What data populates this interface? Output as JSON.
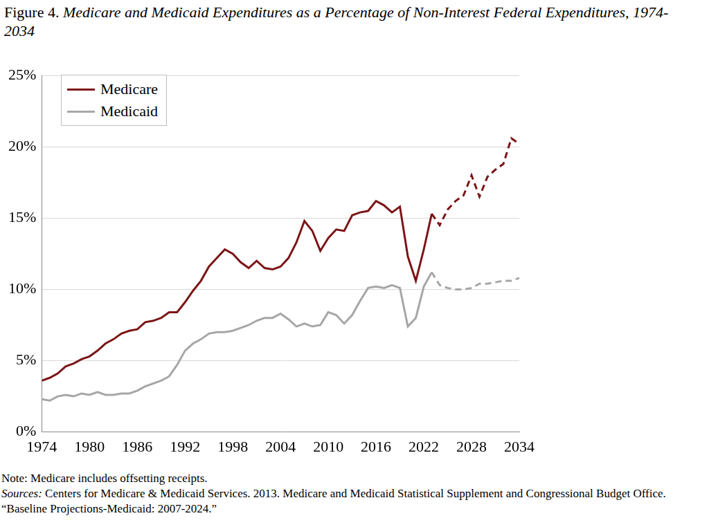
{
  "chart_data": {
    "type": "line",
    "title": "Figure 4. Medicare and Medicaid Expenditures as a Percentage of Non-Interest Federal Expenditures, 1974-2034",
    "note": "Note: Medicare includes offsetting receipts.",
    "sources": "Sources: Centers for Medicare & Medicaid Services. 2013. Medicare and Medicaid Statistical Supplement and Congressional Budget Office. “Baseline Projections-Medicaid: 2007-2024.”",
    "x": [
      1974,
      1975,
      1976,
      1977,
      1978,
      1979,
      1980,
      1981,
      1982,
      1983,
      1984,
      1985,
      1986,
      1987,
      1988,
      1989,
      1990,
      1991,
      1992,
      1993,
      1994,
      1995,
      1996,
      1997,
      1998,
      1999,
      2000,
      2001,
      2002,
      2003,
      2004,
      2005,
      2006,
      2007,
      2008,
      2009,
      2010,
      2011,
      2012,
      2013,
      2014,
      2015,
      2016,
      2017,
      2018,
      2019,
      2020,
      2021,
      2022,
      2023,
      2024,
      2025,
      2026,
      2027,
      2028,
      2029,
      2030,
      2031,
      2032,
      2033,
      2034
    ],
    "series": [
      {
        "name": "Medicare",
        "color": "#7b1416",
        "line_style": "solid",
        "values": [
          3.6,
          3.8,
          4.1,
          4.6,
          4.8,
          5.1,
          5.3,
          5.7,
          6.2,
          6.5,
          6.9,
          7.1,
          7.2,
          7.7,
          7.8,
          8.0,
          8.4,
          8.4,
          9.1,
          9.9,
          10.6,
          11.6,
          12.2,
          12.8,
          12.5,
          11.9,
          11.5,
          12.0,
          11.5,
          11.4,
          11.6,
          12.2,
          13.3,
          14.8,
          14.1,
          12.7,
          13.6,
          14.2,
          14.1,
          15.2,
          15.4,
          15.5,
          16.2,
          15.9,
          15.4,
          15.8,
          12.3,
          10.6,
          12.8,
          15.3,
          null,
          null,
          null,
          null,
          null,
          null,
          null,
          null,
          null,
          null,
          null
        ]
      },
      {
        "name": "Medicare",
        "color": "#7b1416",
        "line_style": "dashed",
        "values": [
          null,
          null,
          null,
          null,
          null,
          null,
          null,
          null,
          null,
          null,
          null,
          null,
          null,
          null,
          null,
          null,
          null,
          null,
          null,
          null,
          null,
          null,
          null,
          null,
          null,
          null,
          null,
          null,
          null,
          null,
          null,
          null,
          null,
          null,
          null,
          null,
          null,
          null,
          null,
          null,
          null,
          null,
          null,
          null,
          null,
          null,
          null,
          null,
          null,
          15.3,
          14.5,
          15.6,
          16.2,
          16.6,
          18.0,
          16.5,
          17.9,
          18.4,
          18.8,
          20.6,
          20.2
        ]
      },
      {
        "name": "Medicaid",
        "color": "#a6a6a6",
        "line_style": "solid",
        "values": [
          2.3,
          2.2,
          2.5,
          2.6,
          2.5,
          2.7,
          2.6,
          2.8,
          2.6,
          2.6,
          2.7,
          2.7,
          2.9,
          3.2,
          3.4,
          3.6,
          3.9,
          4.7,
          5.7,
          6.2,
          6.5,
          6.9,
          7.0,
          7.0,
          7.1,
          7.3,
          7.5,
          7.8,
          8.0,
          8.0,
          8.3,
          7.9,
          7.4,
          7.6,
          7.4,
          7.5,
          8.4,
          8.2,
          7.6,
          8.2,
          9.2,
          10.1,
          10.2,
          10.1,
          10.3,
          10.1,
          7.4,
          8.0,
          10.2,
          11.2,
          null,
          null,
          null,
          null,
          null,
          null,
          null,
          null,
          null,
          null,
          null
        ]
      },
      {
        "name": "Medicaid",
        "color": "#a6a6a6",
        "line_style": "dashed",
        "values": [
          null,
          null,
          null,
          null,
          null,
          null,
          null,
          null,
          null,
          null,
          null,
          null,
          null,
          null,
          null,
          null,
          null,
          null,
          null,
          null,
          null,
          null,
          null,
          null,
          null,
          null,
          null,
          null,
          null,
          null,
          null,
          null,
          null,
          null,
          null,
          null,
          null,
          null,
          null,
          null,
          null,
          null,
          null,
          null,
          null,
          null,
          null,
          null,
          null,
          11.2,
          10.3,
          10.1,
          10.0,
          10.0,
          10.1,
          10.4,
          10.4,
          10.5,
          10.6,
          10.6,
          10.8
        ]
      }
    ],
    "xlim": [
      1974,
      2034
    ],
    "xticks": [
      1974,
      1980,
      1986,
      1992,
      1998,
      2004,
      2010,
      2016,
      2022,
      2028,
      2034
    ],
    "ylim": [
      0,
      25
    ],
    "yticks": [
      {
        "value": 0,
        "label": "0%"
      },
      {
        "value": 5,
        "label": "5%"
      },
      {
        "value": 10,
        "label": "10%"
      },
      {
        "value": 15,
        "label": "15%"
      },
      {
        "value": 20,
        "label": "20%"
      },
      {
        "value": 25,
        "label": "25%"
      }
    ],
    "grid": "y",
    "legend": "upper left"
  }
}
